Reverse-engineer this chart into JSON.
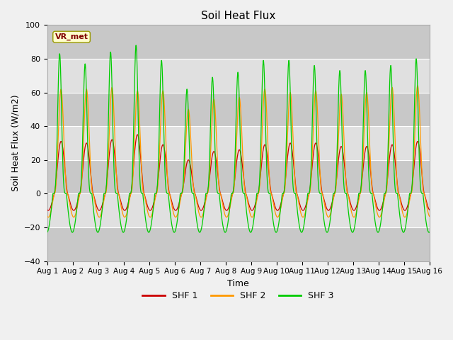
{
  "title": "Soil Heat Flux",
  "ylabel": "Soil Heat Flux (W/m2)",
  "xlabel": "Time",
  "ylim": [
    -40,
    100
  ],
  "yticks": [
    -40,
    -20,
    0,
    20,
    40,
    60,
    80,
    100
  ],
  "num_days": 15,
  "colors": {
    "SHF 1": "#cc0000",
    "SHF 2": "#ff9900",
    "SHF 3": "#00cc00"
  },
  "legend_label": "VR_met",
  "background_color": "#f0f0f0",
  "plot_bg_color": "#e0e0e0",
  "shf1_day_peaks": [
    31,
    30,
    32,
    35,
    29,
    20,
    25,
    26,
    29,
    30,
    30,
    28,
    28,
    29,
    31
  ],
  "shf2_day_peaks": [
    62,
    62,
    63,
    61,
    61,
    50,
    56,
    57,
    62,
    60,
    61,
    59,
    60,
    63,
    64
  ],
  "shf3_day_peaks": [
    83,
    77,
    84,
    88,
    79,
    62,
    69,
    72,
    79,
    79,
    76,
    73,
    73,
    76,
    80
  ],
  "shf1_night_min": -10,
  "shf2_night_min": -14,
  "shf3_night_min": -23,
  "grid_color": "#ffffff",
  "stripe_color": "#d8d8d8"
}
